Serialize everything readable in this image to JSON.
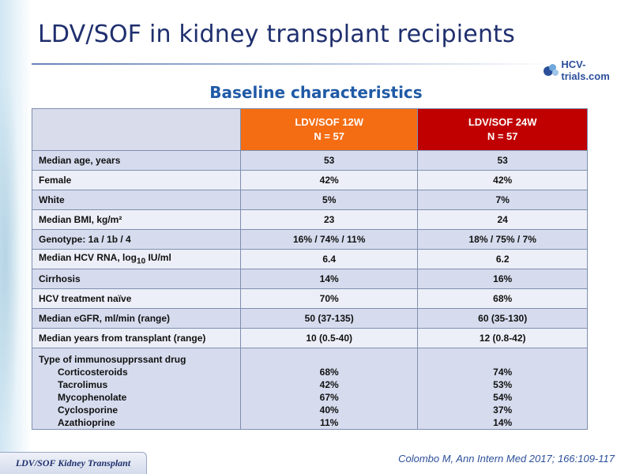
{
  "slide": {
    "title": "LDV/SOF in kidney transplant recipients",
    "subtitle": "Baseline characteristics",
    "logo_text": "HCV-trials.com",
    "footer_label": "LDV/SOF Kidney Transplant",
    "citation": "Colombo M, Ann Intern Med 2017; 166:109-117"
  },
  "colors": {
    "title": "#1f2f6e",
    "subtitle": "#1f5aa6",
    "header_12w": "#f46d13",
    "header_24w": "#c00000",
    "row_dark": "#d6dcee",
    "row_light": "#eceff7"
  },
  "table": {
    "columns": [
      {
        "line1": "LDV/SOF 12W",
        "line2": "N = 57"
      },
      {
        "line1": "LDV/SOF 24W",
        "line2": "N = 57"
      }
    ],
    "rows": [
      {
        "label": "Median age, years",
        "v12": "53",
        "v24": "53"
      },
      {
        "label": "Female",
        "v12": "42%",
        "v24": "42%"
      },
      {
        "label": "White",
        "v12": "5%",
        "v24": "7%"
      },
      {
        "label": "Median BMI, kg/m²",
        "v12": "23",
        "v24": "24"
      },
      {
        "label": "Genotype: 1a / 1b / 4",
        "v12": "16% / 74% / 11%",
        "v24": "18% / 75% / 7%"
      },
      {
        "label_pre": "Median HCV RNA, log",
        "label_sub": "10",
        "label_post": " IU/ml",
        "v12": "6.4",
        "v24": "6.2"
      },
      {
        "label": "Cirrhosis",
        "v12": "14%",
        "v24": "16%"
      },
      {
        "label": "HCV treatment naïve",
        "v12": "70%",
        "v24": "68%"
      },
      {
        "label": "Median eGFR, ml/min (range)",
        "v12": "50 (37-135)",
        "v24": "60 (35-130)"
      },
      {
        "label": "Median years from transplant (range)",
        "v12": "10 (0.5-40)",
        "v24": "12 (0.8-42)"
      }
    ],
    "immuno": {
      "label": "Type of immunosupprssant drug",
      "items": [
        {
          "name": "Corticosteroids",
          "v12": "68%",
          "v24": "74%"
        },
        {
          "name": "Tacrolimus",
          "v12": "42%",
          "v24": "53%"
        },
        {
          "name": "Mycophenolate",
          "v12": "67%",
          "v24": "54%"
        },
        {
          "name": "Cyclosporine",
          "v12": "40%",
          "v24": "37%"
        },
        {
          "name": "Azathioprine",
          "v12": "11%",
          "v24": "14%"
        }
      ]
    }
  }
}
